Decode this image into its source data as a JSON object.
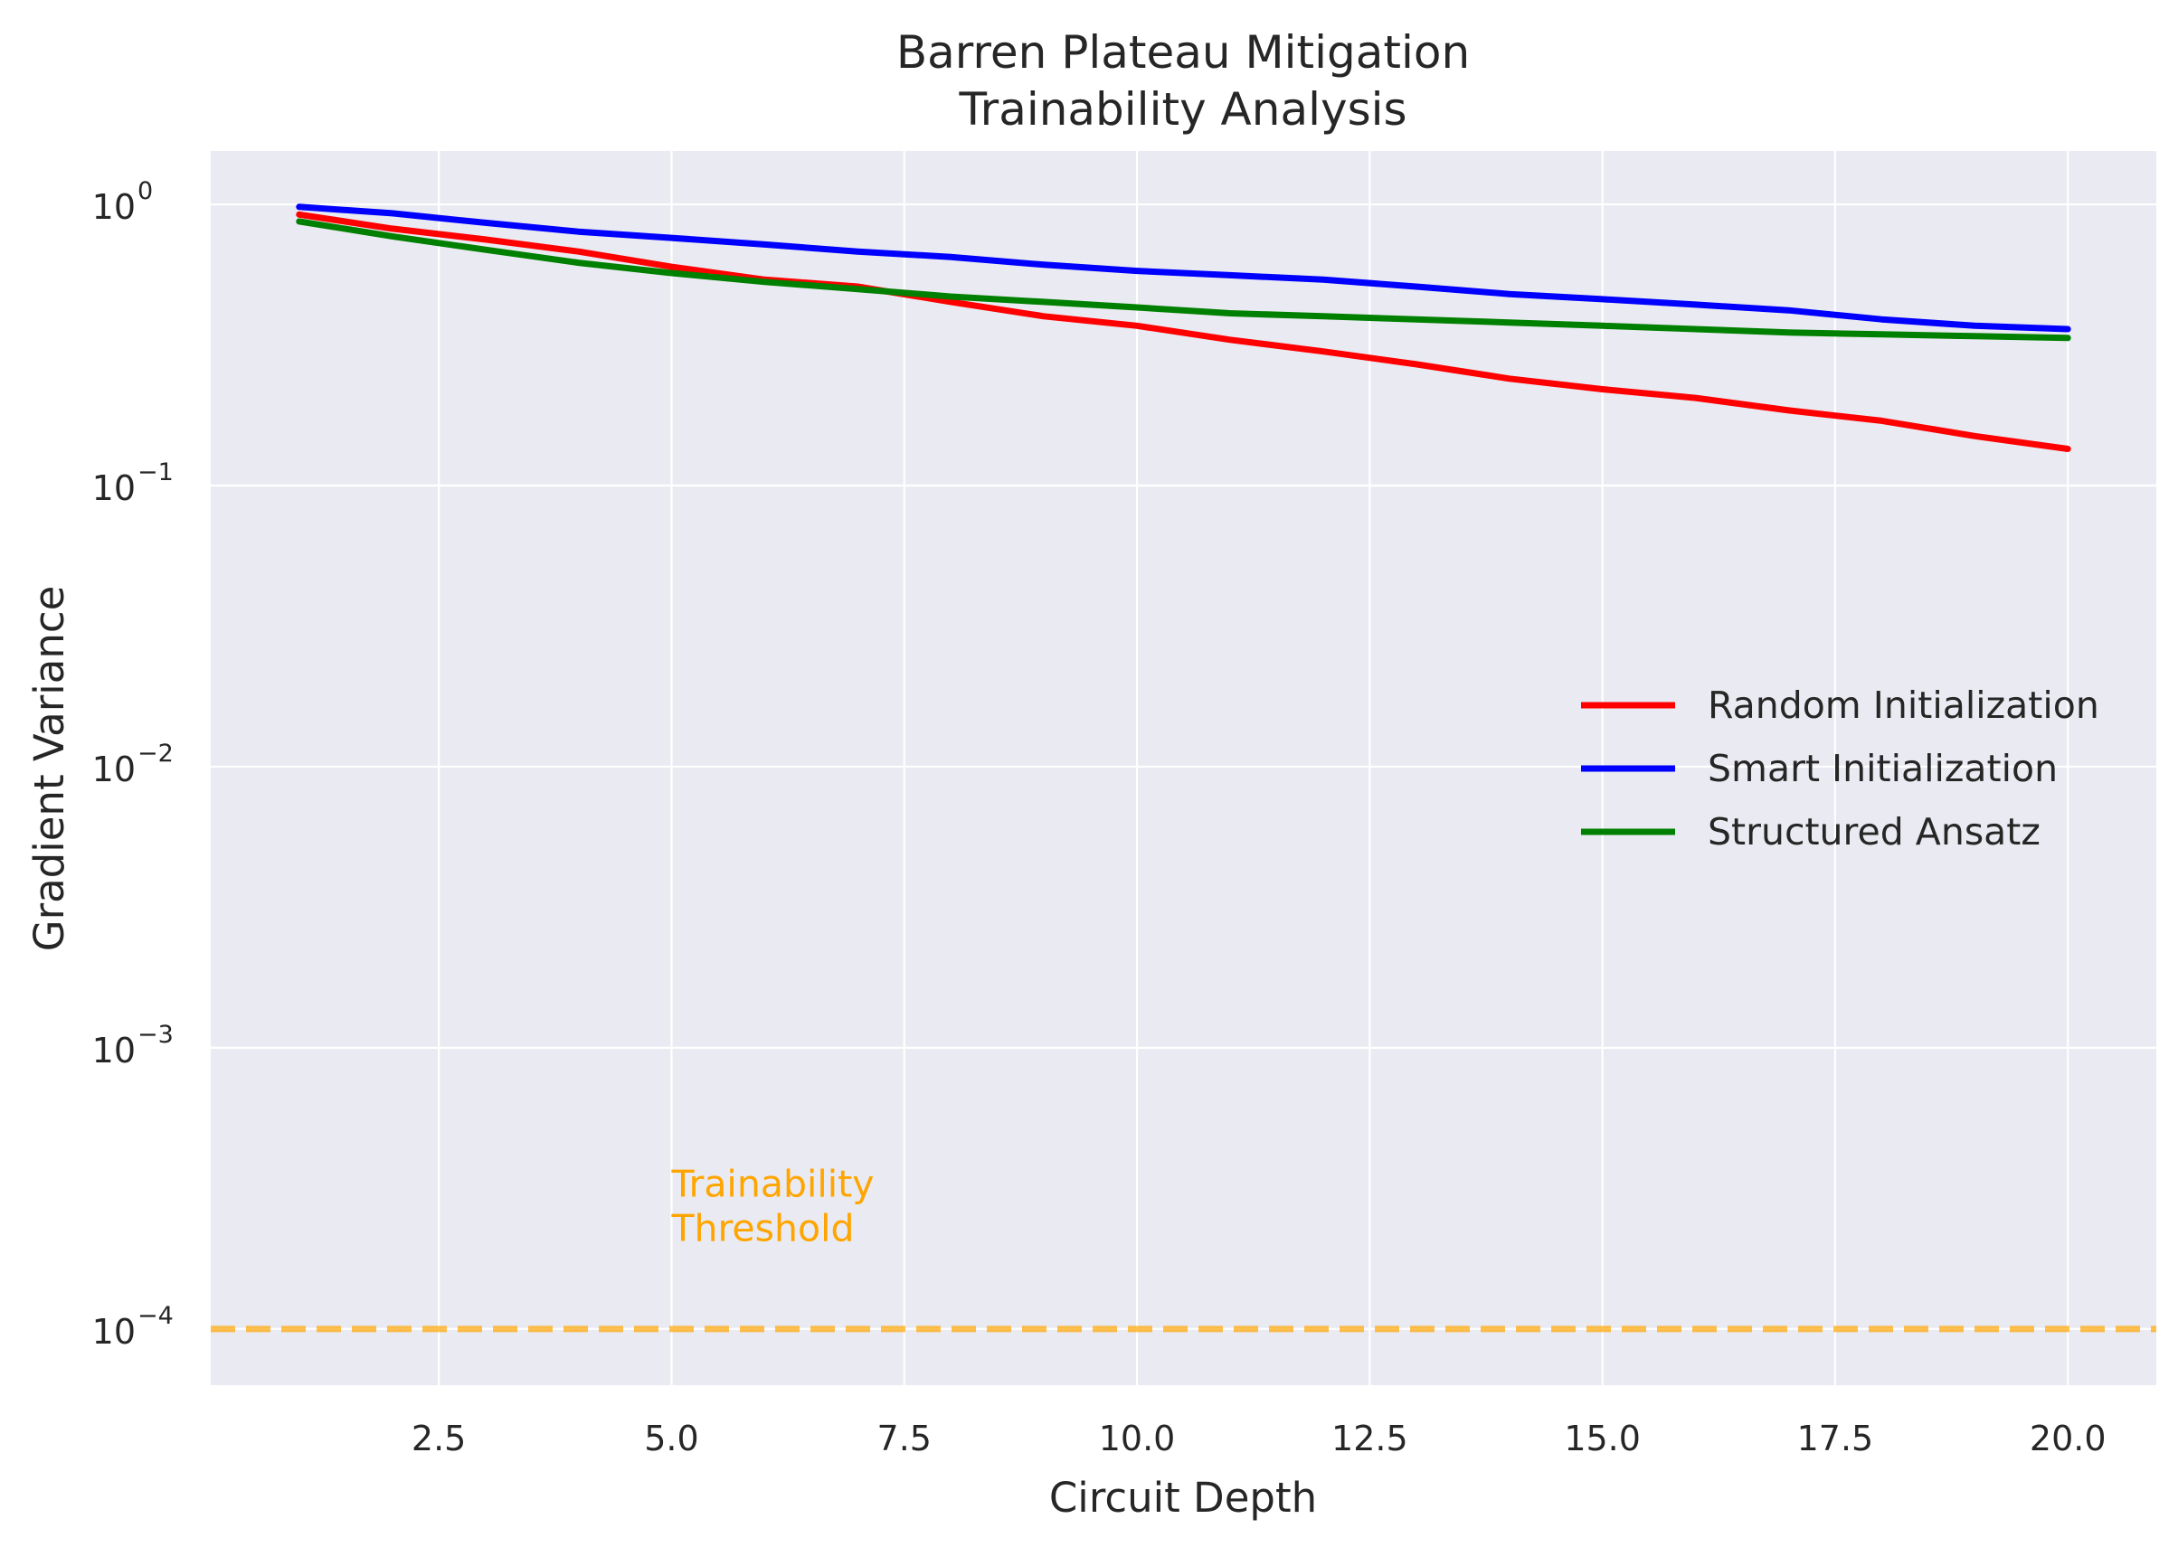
{
  "chart_data": {
    "type": "line",
    "title": "Barren Plateau Mitigation",
    "subtitle": "Trainability Analysis",
    "xlabel": "Circuit Depth",
    "ylabel": "Gradient Variance",
    "yscale": "log",
    "xlim": [
      0.05,
      20.95
    ],
    "ylim_log10": [
      -4.2,
      0.19
    ],
    "grid": true,
    "legend_position": "center-right",
    "x": [
      1,
      2,
      3,
      4,
      5,
      6,
      7,
      8,
      9,
      10,
      11,
      12,
      13,
      14,
      15,
      16,
      17,
      18,
      19,
      20
    ],
    "xticks": [
      2.5,
      5.0,
      7.5,
      10.0,
      12.5,
      15.0,
      17.5,
      20.0
    ],
    "xtick_labels": [
      "2.5",
      "5.0",
      "7.5",
      "10.0",
      "12.5",
      "15.0",
      "17.5",
      "20.0"
    ],
    "yticks": [
      {
        "base": "10",
        "exp": "0",
        "value": 1
      },
      {
        "base": "10",
        "exp": "−1",
        "value": 0.1
      },
      {
        "base": "10",
        "exp": "−2",
        "value": 0.01
      },
      {
        "base": "10",
        "exp": "−3",
        "value": 0.001
      },
      {
        "base": "10",
        "exp": "−4",
        "value": 0.0001
      }
    ],
    "series": [
      {
        "name": "Random Initialization",
        "color": "#ff0000",
        "values": [
          0.92,
          0.82,
          0.75,
          0.68,
          0.6,
          0.54,
          0.51,
          0.45,
          0.4,
          0.37,
          0.33,
          0.3,
          0.27,
          0.24,
          0.22,
          0.205,
          0.185,
          0.17,
          0.15,
          0.135
        ]
      },
      {
        "name": "Smart Initialization",
        "color": "#0000ff",
        "values": [
          0.98,
          0.93,
          0.86,
          0.8,
          0.76,
          0.72,
          0.68,
          0.65,
          0.61,
          0.58,
          0.56,
          0.54,
          0.51,
          0.48,
          0.46,
          0.44,
          0.42,
          0.39,
          0.37,
          0.36
        ]
      },
      {
        "name": "Structured Ansatz",
        "color": "#008000",
        "values": [
          0.87,
          0.77,
          0.69,
          0.62,
          0.57,
          0.53,
          0.5,
          0.47,
          0.45,
          0.43,
          0.41,
          0.4,
          0.39,
          0.38,
          0.37,
          0.36,
          0.35,
          0.345,
          0.34,
          0.335
        ]
      }
    ],
    "threshold": {
      "value": 0.0001,
      "color": "#ffa500",
      "style": "dashed"
    },
    "annotation": {
      "lines": [
        "Trainability",
        "Threshold"
      ],
      "x": 5.0,
      "y": 0.00022,
      "color": "#ffa500"
    }
  }
}
